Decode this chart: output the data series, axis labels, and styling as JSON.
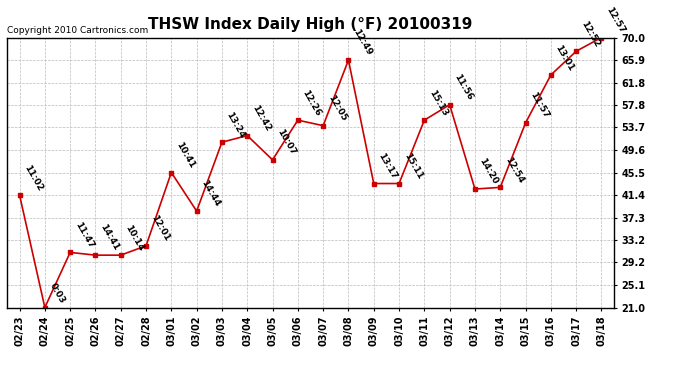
{
  "title": "THSW Index Daily High (°F) 20100319",
  "copyright": "Copyright 2010 Cartronics.com",
  "x_labels": [
    "02/23",
    "02/24",
    "02/25",
    "02/26",
    "02/27",
    "02/28",
    "03/01",
    "03/02",
    "03/03",
    "03/04",
    "03/05",
    "03/06",
    "03/07",
    "03/08",
    "03/09",
    "03/10",
    "03/11",
    "03/12",
    "03/13",
    "03/14",
    "03/15",
    "03/16",
    "03/17",
    "03/18"
  ],
  "y_values": [
    41.4,
    21.0,
    31.0,
    30.5,
    30.5,
    32.2,
    45.5,
    38.5,
    51.0,
    52.2,
    47.8,
    55.0,
    54.0,
    65.9,
    43.5,
    43.5,
    55.0,
    57.8,
    42.5,
    42.8,
    54.5,
    63.2,
    67.5,
    70.0
  ],
  "point_labels": [
    "11:02",
    "0:03",
    "11:47",
    "14:41",
    "10:14",
    "12:01",
    "10:41",
    "14:44",
    "13:24",
    "12:42",
    "10:07",
    "12:26",
    "12:05",
    "12:49",
    "13:17",
    "15:11",
    "15:13",
    "11:56",
    "14:20",
    "12:54",
    "11:57",
    "13:01",
    "12:52",
    "12:57"
  ],
  "line_color": "#cc0000",
  "marker_color": "#cc0000",
  "bg_color": "#ffffff",
  "grid_color": "#bbbbbb",
  "ylim": [
    21.0,
    70.0
  ],
  "yticks": [
    21.0,
    25.1,
    29.2,
    33.2,
    37.3,
    41.4,
    45.5,
    49.6,
    53.7,
    57.8,
    61.8,
    65.9,
    70.0
  ],
  "title_fontsize": 11,
  "label_fontsize": 6.5,
  "tick_fontsize": 7,
  "copyright_fontsize": 6.5
}
